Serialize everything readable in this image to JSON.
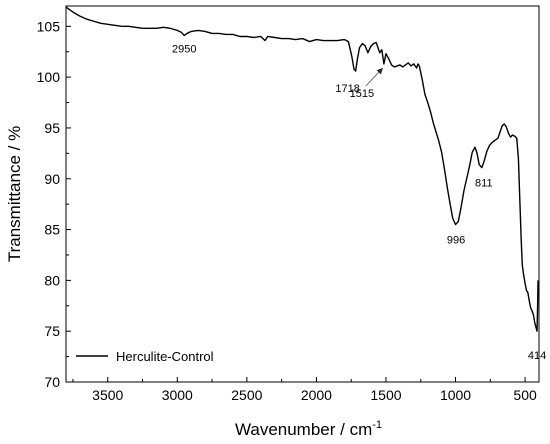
{
  "chart_data": {
    "type": "line",
    "title": "",
    "xlabel": "Wavenumber / cm",
    "xlabel_superscript": "-1",
    "ylabel": "Transmittance / %",
    "x_reversed": true,
    "xlim": [
      3800,
      400
    ],
    "ylim": [
      70,
      107
    ],
    "xticks": [
      3500,
      3000,
      2500,
      2000,
      1500,
      1000,
      500
    ],
    "yticks": [
      70,
      75,
      80,
      85,
      90,
      95,
      100,
      105
    ],
    "grid": false,
    "legend": {
      "position": "bottom-left"
    },
    "series": [
      {
        "name": "Herculite-Control",
        "color": "#000000",
        "points": [
          [
            3800,
            106.9
          ],
          [
            3780,
            106.7
          ],
          [
            3750,
            106.4
          ],
          [
            3700,
            106.0
          ],
          [
            3650,
            105.7
          ],
          [
            3600,
            105.5
          ],
          [
            3550,
            105.3
          ],
          [
            3500,
            105.2
          ],
          [
            3450,
            105.1
          ],
          [
            3400,
            105.0
          ],
          [
            3350,
            105.0
          ],
          [
            3300,
            104.9
          ],
          [
            3250,
            104.8
          ],
          [
            3200,
            104.8
          ],
          [
            3150,
            104.8
          ],
          [
            3100,
            104.9
          ],
          [
            3050,
            104.8
          ],
          [
            3000,
            104.6
          ],
          [
            2970,
            104.4
          ],
          [
            2950,
            104.1
          ],
          [
            2930,
            104.3
          ],
          [
            2900,
            104.5
          ],
          [
            2850,
            104.6
          ],
          [
            2800,
            104.5
          ],
          [
            2750,
            104.3
          ],
          [
            2700,
            104.3
          ],
          [
            2650,
            104.2
          ],
          [
            2600,
            104.2
          ],
          [
            2550,
            104.0
          ],
          [
            2500,
            104.0
          ],
          [
            2450,
            103.9
          ],
          [
            2400,
            104.0
          ],
          [
            2370,
            103.6
          ],
          [
            2350,
            104.0
          ],
          [
            2300,
            103.9
          ],
          [
            2250,
            103.8
          ],
          [
            2200,
            103.8
          ],
          [
            2150,
            103.7
          ],
          [
            2100,
            103.8
          ],
          [
            2050,
            103.5
          ],
          [
            2000,
            103.7
          ],
          [
            1950,
            103.6
          ],
          [
            1900,
            103.6
          ],
          [
            1850,
            103.6
          ],
          [
            1800,
            103.7
          ],
          [
            1770,
            103.5
          ],
          [
            1745,
            102.0
          ],
          [
            1730,
            100.8
          ],
          [
            1718,
            100.6
          ],
          [
            1705,
            101.8
          ],
          [
            1690,
            102.9
          ],
          [
            1670,
            103.3
          ],
          [
            1650,
            103.1
          ],
          [
            1630,
            102.4
          ],
          [
            1610,
            103.0
          ],
          [
            1590,
            103.3
          ],
          [
            1570,
            103.4
          ],
          [
            1545,
            102.4
          ],
          [
            1530,
            102.7
          ],
          [
            1515,
            101.3
          ],
          [
            1500,
            102.3
          ],
          [
            1480,
            101.8
          ],
          [
            1460,
            101.2
          ],
          [
            1440,
            101.0
          ],
          [
            1420,
            101.1
          ],
          [
            1400,
            101.2
          ],
          [
            1380,
            101.0
          ],
          [
            1360,
            101.2
          ],
          [
            1340,
            101.4
          ],
          [
            1320,
            101.1
          ],
          [
            1300,
            101.3
          ],
          [
            1280,
            100.9
          ],
          [
            1270,
            101.3
          ],
          [
            1260,
            101.1
          ],
          [
            1240,
            99.8
          ],
          [
            1220,
            98.3
          ],
          [
            1200,
            97.5
          ],
          [
            1180,
            96.6
          ],
          [
            1160,
            95.5
          ],
          [
            1140,
            94.6
          ],
          [
            1120,
            93.7
          ],
          [
            1100,
            92.6
          ],
          [
            1080,
            91.0
          ],
          [
            1060,
            89.2
          ],
          [
            1040,
            87.6
          ],
          [
            1020,
            86.1
          ],
          [
            1000,
            85.5
          ],
          [
            980,
            85.8
          ],
          [
            960,
            87.2
          ],
          [
            940,
            88.8
          ],
          [
            920,
            90.0
          ],
          [
            900,
            91.2
          ],
          [
            880,
            92.6
          ],
          [
            860,
            93.1
          ],
          [
            845,
            92.5
          ],
          [
            830,
            91.4
          ],
          [
            811,
            91.1
          ],
          [
            795,
            91.7
          ],
          [
            775,
            92.7
          ],
          [
            755,
            93.3
          ],
          [
            735,
            93.6
          ],
          [
            715,
            93.8
          ],
          [
            695,
            94.0
          ],
          [
            680,
            94.6
          ],
          [
            665,
            95.2
          ],
          [
            650,
            95.4
          ],
          [
            635,
            95.1
          ],
          [
            620,
            94.5
          ],
          [
            605,
            94.1
          ],
          [
            590,
            94.3
          ],
          [
            575,
            94.2
          ],
          [
            560,
            94.0
          ],
          [
            548,
            92.0
          ],
          [
            538,
            88.0
          ],
          [
            528,
            84.0
          ],
          [
            520,
            81.5
          ],
          [
            510,
            80.5
          ],
          [
            500,
            79.7
          ],
          [
            490,
            79.0
          ],
          [
            480,
            78.8
          ],
          [
            470,
            78.0
          ],
          [
            460,
            77.3
          ],
          [
            450,
            77.0
          ],
          [
            440,
            76.6
          ],
          [
            430,
            75.8
          ],
          [
            420,
            75.3
          ],
          [
            414,
            75.0
          ],
          [
            410,
            77.5
          ],
          [
            407,
            80.0
          ]
        ]
      }
    ],
    "annotations": [
      {
        "text": "2950",
        "x": 2950,
        "y": 104.1
      },
      {
        "text": "1718",
        "x": 1718,
        "y": 100.6
      },
      {
        "text": "1515",
        "x": 1515,
        "y": 101.3
      },
      {
        "text": "996",
        "x": 996,
        "y": 85.5
      },
      {
        "text": "811",
        "x": 811,
        "y": 91.1
      },
      {
        "text": "414",
        "x": 414,
        "y": 75.0
      }
    ]
  }
}
